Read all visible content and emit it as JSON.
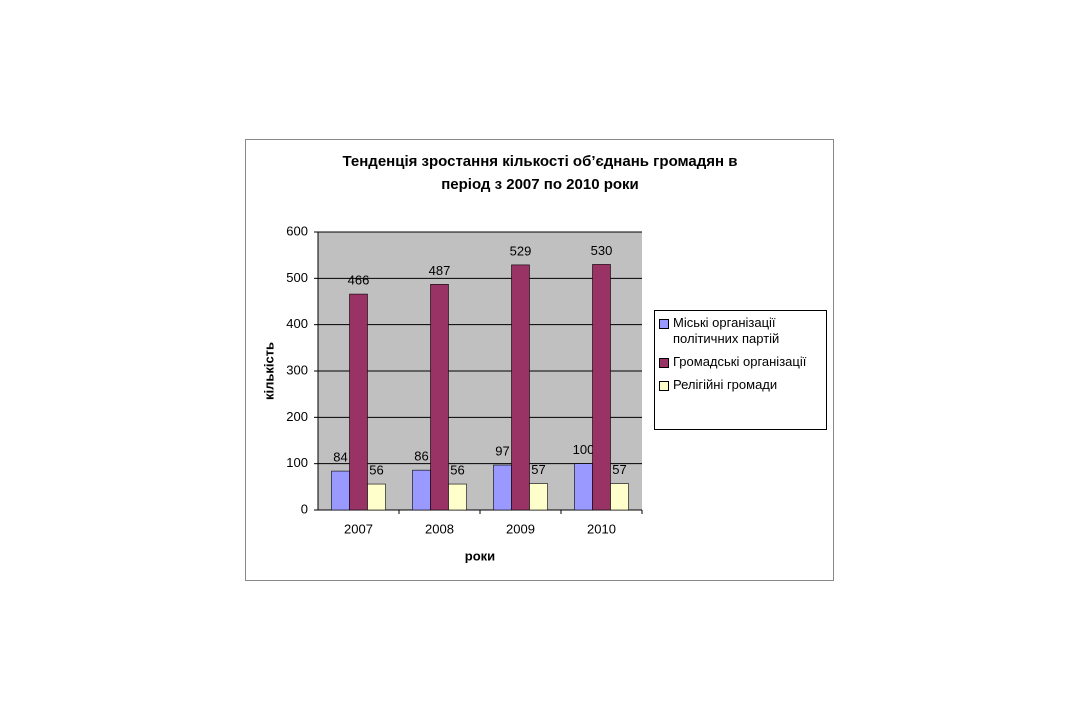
{
  "chart_data": {
    "type": "bar",
    "title": [
      "Тенденція зростання кількості об’єднань громадян в",
      "період з 2007 по 2010 роки"
    ],
    "x_label": "роки",
    "y_label": "кількість",
    "categories": [
      "2007",
      "2008",
      "2009",
      "2010"
    ],
    "series": [
      {
        "name": "Міські організації політичних партій",
        "color": "#9999ff",
        "values": [
          84,
          86,
          97,
          100
        ]
      },
      {
        "name": "Громадські організації",
        "color": "#993366",
        "values": [
          466,
          487,
          529,
          530
        ]
      },
      {
        "name": "Релігійні громади",
        "color": "#ffffcc",
        "values": [
          56,
          56,
          57,
          57
        ]
      }
    ],
    "ylim": [
      0,
      600
    ],
    "yticks": [
      0,
      100,
      200,
      300,
      400,
      500,
      600
    ],
    "grid": true,
    "legend": "right"
  }
}
